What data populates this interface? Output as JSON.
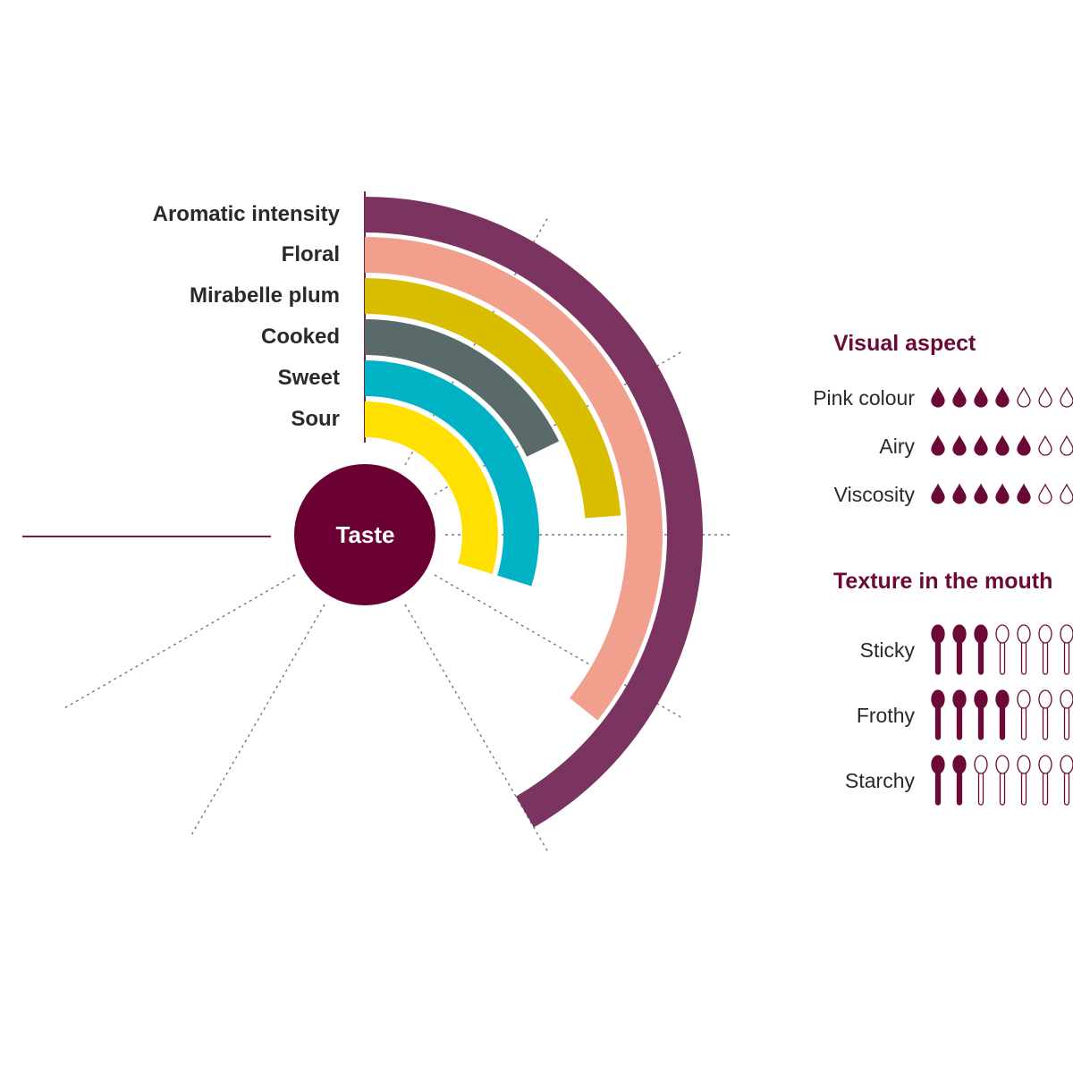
{
  "chart_data": {
    "type": "radial-bar",
    "center_label": "Taste",
    "max_value": 7,
    "series": [
      {
        "name": "Aromatic intensity",
        "value": 7,
        "color": "#7b3360"
      },
      {
        "name": "Floral",
        "value": 6,
        "color": "#f2a08e"
      },
      {
        "name": "Mirabelle plum",
        "value": 4,
        "color": "#d9bd00"
      },
      {
        "name": "Cooked",
        "value": 3,
        "color": "#5a6a6b"
      },
      {
        "name": "Sweet",
        "value": 5,
        "color": "#00b2c3"
      },
      {
        "name": "Sour",
        "value": 5,
        "color": "#ffe000"
      }
    ]
  },
  "visual_aspect": {
    "title": "Visual aspect",
    "icon": "drop-icon",
    "max": 7,
    "items": [
      {
        "label": "Pink colour",
        "value": 4
      },
      {
        "label": "Airy",
        "value": 5
      },
      {
        "label": "Viscosity",
        "value": 5
      }
    ]
  },
  "texture": {
    "title": "Texture in the mouth",
    "icon": "spoon-icon",
    "max": 7,
    "items": [
      {
        "label": "Sticky",
        "value": 3
      },
      {
        "label": "Frothy",
        "value": 4
      },
      {
        "label": "Starchy",
        "value": 2
      }
    ]
  },
  "colors": {
    "accent": "#6b0a36",
    "center": "#6b0033"
  }
}
